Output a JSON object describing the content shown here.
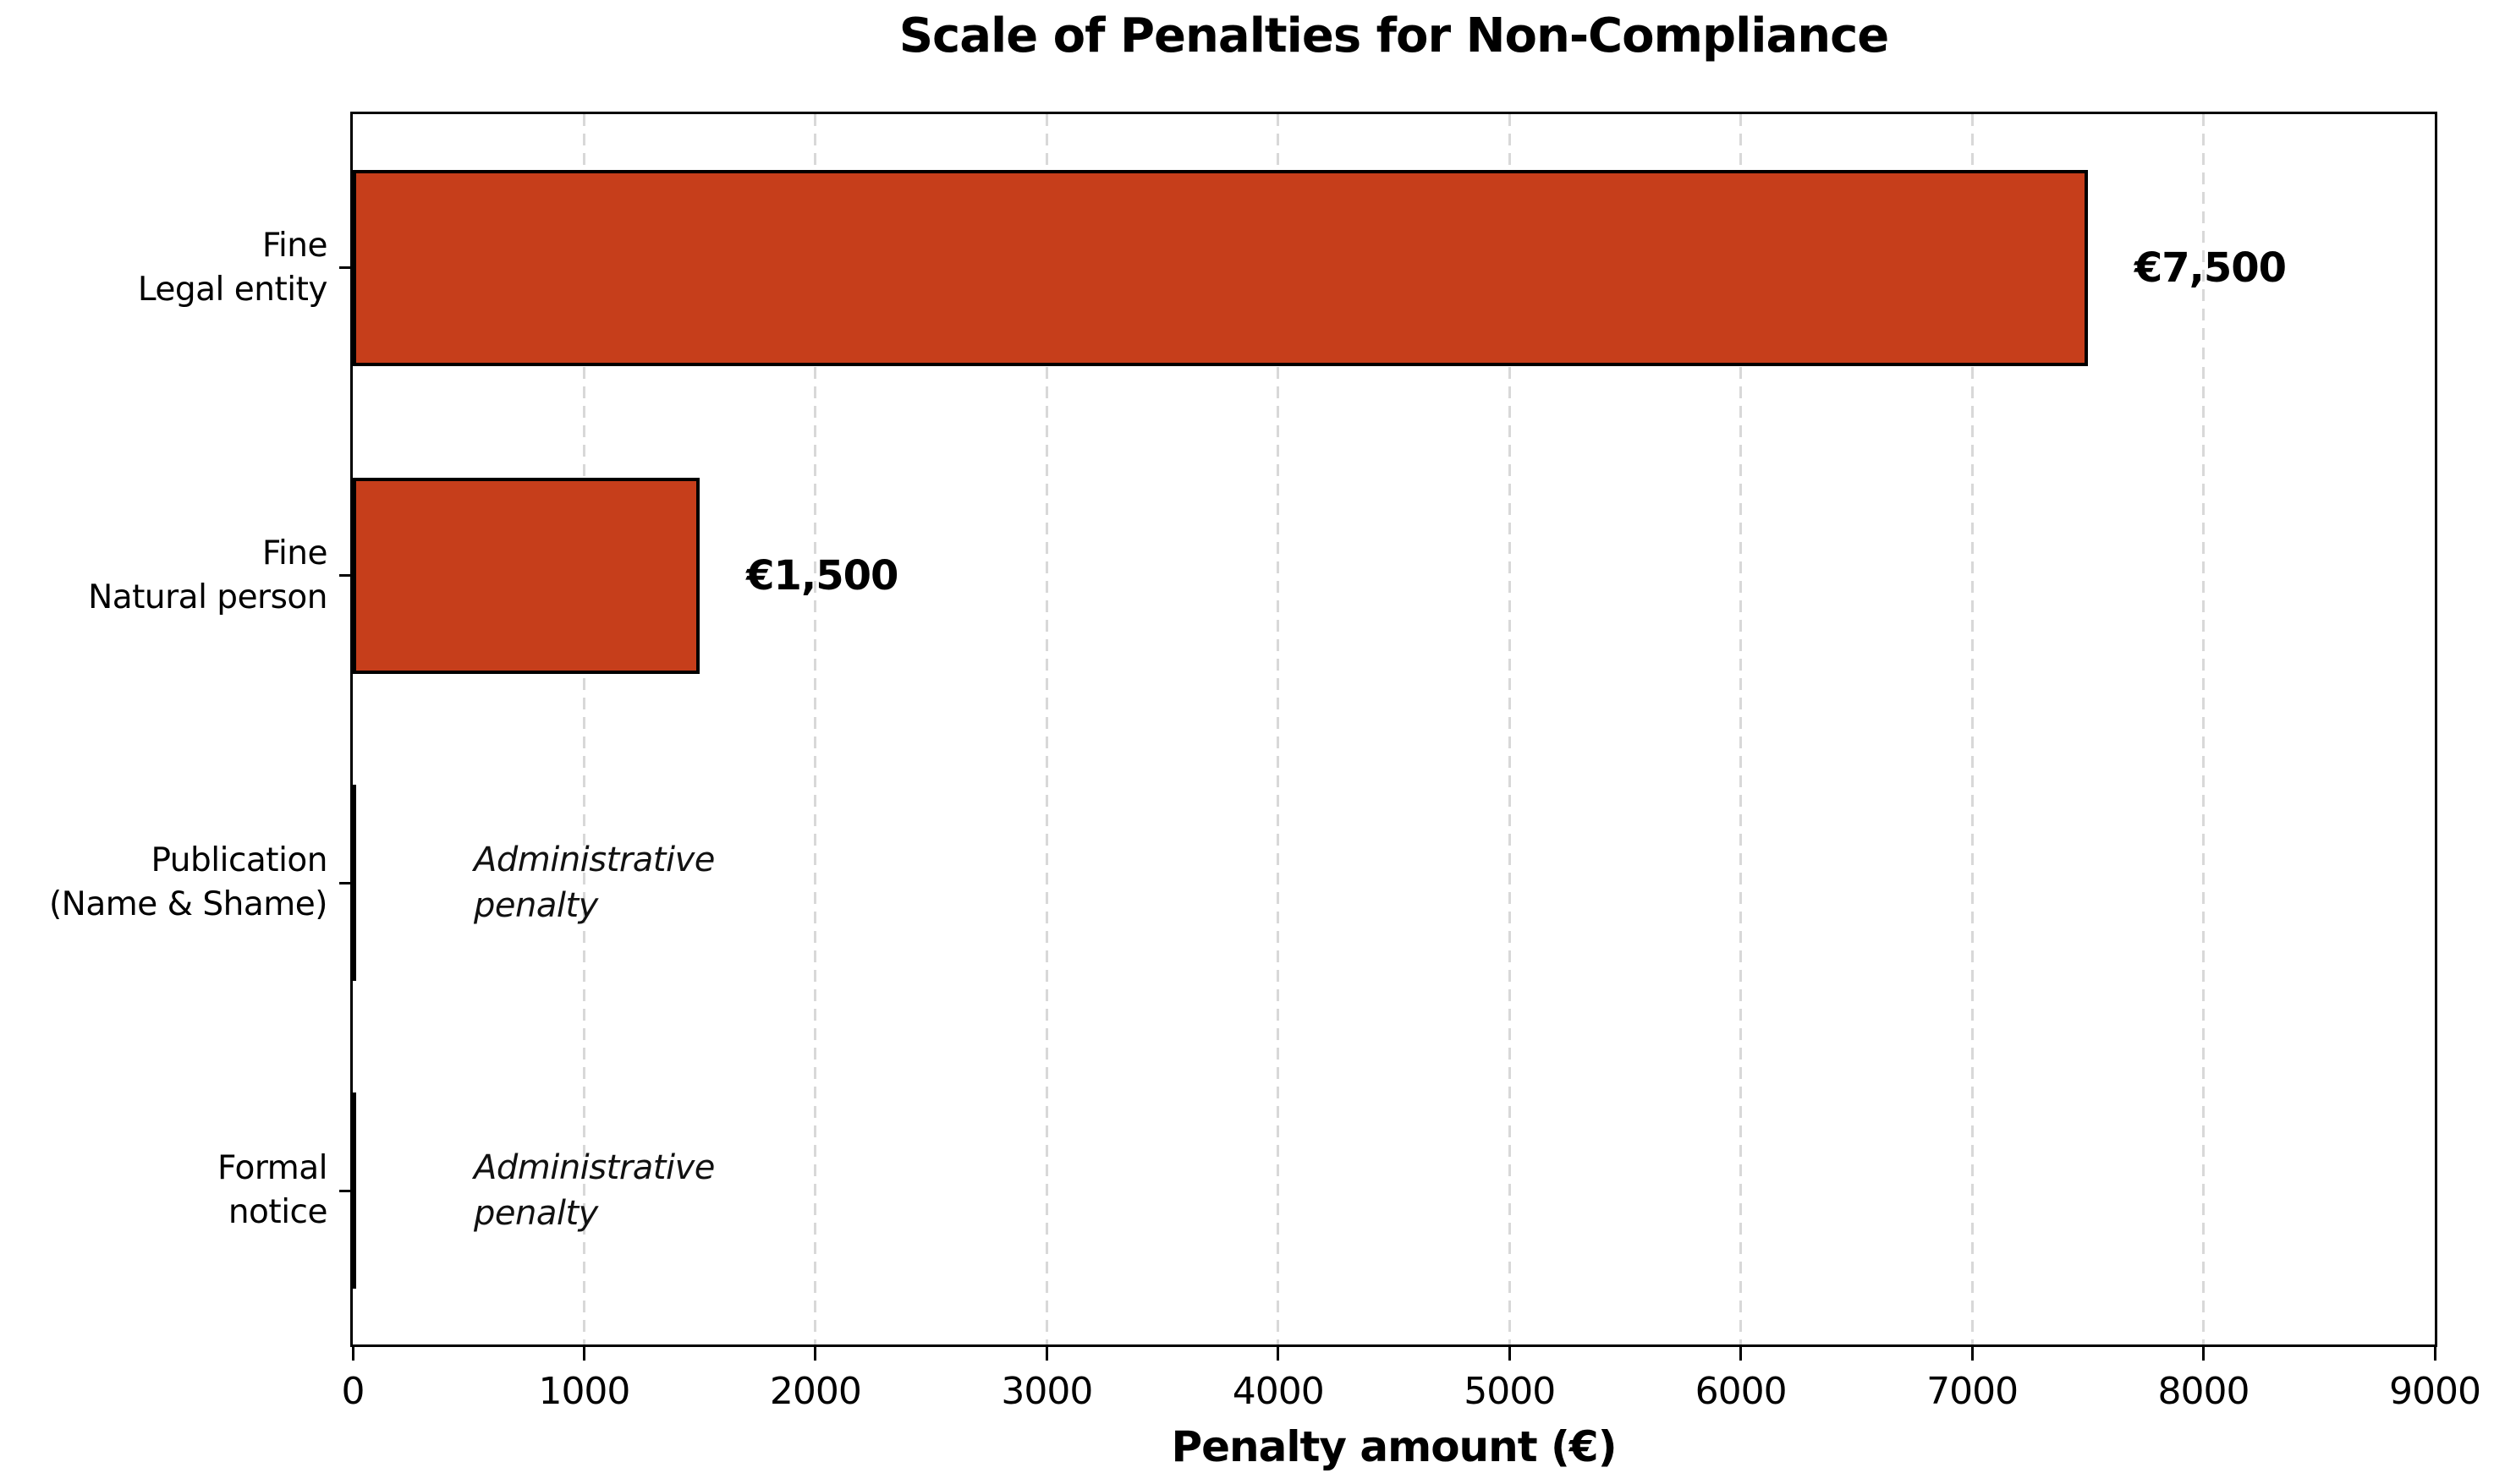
{
  "figure": {
    "background": "#ffffff"
  },
  "chart_data": {
    "type": "bar",
    "orientation": "horizontal",
    "title": "Scale of Penalties for Non-Compliance",
    "xlabel": "Penalty amount (€)",
    "ylabel": "",
    "xlim": [
      0,
      9000
    ],
    "xticks": [
      0,
      1000,
      2000,
      3000,
      4000,
      5000,
      6000,
      7000,
      8000,
      9000
    ],
    "grid": {
      "axis": "x",
      "style": "dashed",
      "color": "#d8d8d8"
    },
    "legend": "none",
    "bar_color": "#c63e1b",
    "bar_edge_color": "#000000",
    "rows": [
      {
        "category_lines": [
          "Fine",
          "Legal entity"
        ],
        "value": 7500,
        "value_label": "€7,500",
        "annotation_lines": []
      },
      {
        "category_lines": [
          "Fine",
          "Natural person"
        ],
        "value": 1500,
        "value_label": "€1,500",
        "annotation_lines": []
      },
      {
        "category_lines": [
          "Publication",
          "(Name & Shame)"
        ],
        "value": 0,
        "value_label": "",
        "annotation_lines": [
          "Administrative",
          "penalty"
        ]
      },
      {
        "category_lines": [
          "Formal",
          "notice"
        ],
        "value": 0,
        "value_label": "",
        "annotation_lines": [
          "Administrative",
          "penalty"
        ]
      }
    ]
  }
}
